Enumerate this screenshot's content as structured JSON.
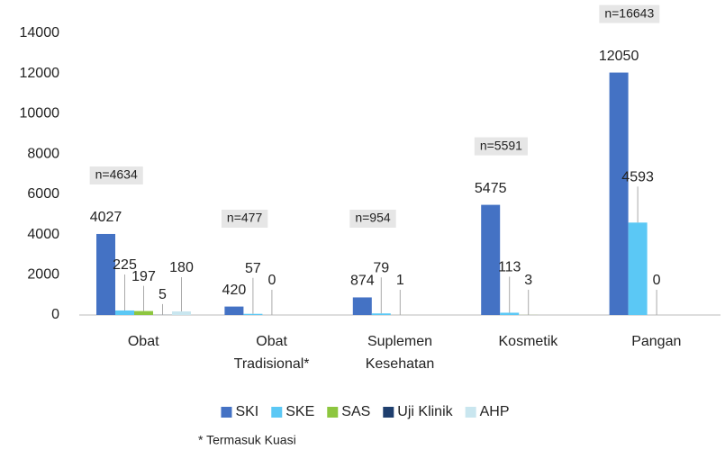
{
  "chart_data": {
    "type": "bar",
    "categories": [
      "Obat",
      "Obat Tradisional*",
      "Suplemen Kesehatan",
      "Kosmetik",
      "Pangan"
    ],
    "series": [
      {
        "name": "SKI",
        "color": "#4472c4",
        "values": [
          4027,
          420,
          874,
          5475,
          12050
        ]
      },
      {
        "name": "SKE",
        "color": "#5bc8f5",
        "values": [
          225,
          57,
          79,
          113,
          4593
        ]
      },
      {
        "name": "SAS",
        "color": "#8dc63f",
        "values": [
          197,
          0,
          1,
          3,
          0
        ]
      },
      {
        "name": "Uji Klinik",
        "color": "#1f3f6e",
        "values": [
          5,
          null,
          null,
          null,
          null
        ]
      },
      {
        "name": "AHP",
        "color": "#c9e6ef",
        "values": [
          180,
          null,
          null,
          null,
          null
        ]
      }
    ],
    "annotations": [
      "n=4634",
      "n=477",
      "n=954",
      "n=5591",
      "n=16643"
    ],
    "footnote": "* Termasuk Kuasi",
    "ylim": [
      0,
      14000
    ],
    "yticks": [
      0,
      2000,
      4000,
      6000,
      8000,
      10000,
      12000,
      14000
    ],
    "grid": false,
    "legend": "bottom"
  }
}
